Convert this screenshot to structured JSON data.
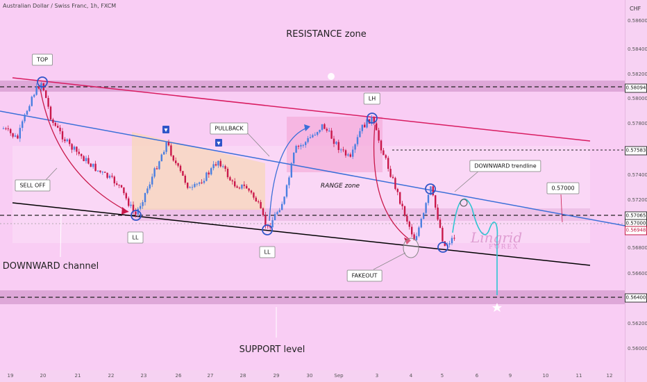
{
  "header": {
    "title": "Australian Dollar / Swiss Franc, 1h, FXCM"
  },
  "axis": {
    "unit": "CHF",
    "ticks": [
      "0.58600",
      "0.58400",
      "0.58200",
      "0.58000",
      "0.57800",
      "0.57400",
      "0.57200",
      "0.56800",
      "0.56600",
      "0.56200",
      "0.56000"
    ],
    "tags": [
      "0.58094",
      "0.57583",
      "0.57065",
      "0.57000",
      "0.56948",
      "0.56400"
    ],
    "dates": [
      "19",
      "20",
      "21",
      "22",
      "23",
      "26",
      "27",
      "28",
      "29",
      "30",
      "Sep",
      "3",
      "4",
      "5",
      "6",
      "9",
      "10",
      "11",
      "12"
    ]
  },
  "labels": {
    "resistance": "RESISTANCE zone",
    "support": "SUPPORT level",
    "channel": "DOWNWARD channel",
    "top": "TOP",
    "lh": "LH",
    "ll1": "LL",
    "ll2": "LL",
    "sell_off": "SELL OFF",
    "pullback": "PULLBACK",
    "range": "RANGE zone",
    "trendline": "DOWNWARD trendline",
    "fakeout": "FAKEOUT",
    "target": "0.57000"
  },
  "watermark": {
    "name": "Lingrid",
    "sub": "FOREX"
  },
  "colors": {
    "bull": "#4a7fe0",
    "bear": "#c9184a",
    "trendline": "#3a6fd8",
    "channel_top": "#d81b60",
    "channel_bottom": "#000000",
    "projection": "#2ec4d1",
    "zone": "#d9a0d2"
  },
  "chart_data": {
    "type": "candlestick",
    "title": "Australian Dollar / Swiss Franc, 1h, FXCM",
    "y_unit": "CHF",
    "ylim": [
      0.5585,
      0.5875
    ],
    "key_levels": {
      "resistance": 0.58094,
      "range_top": 0.57583,
      "range_bottom": 0.57065,
      "current": 0.56948,
      "support": 0.564,
      "target": 0.57
    },
    "annotations": [
      "TOP",
      "LH",
      "LL",
      "LL",
      "SELL OFF",
      "PULLBACK",
      "RANGE zone",
      "DOWNWARD trendline",
      "DOWNWARD channel",
      "FAKEOUT",
      "RESISTANCE zone",
      "SUPPORT level"
    ],
    "grid": false,
    "legend": "none"
  }
}
